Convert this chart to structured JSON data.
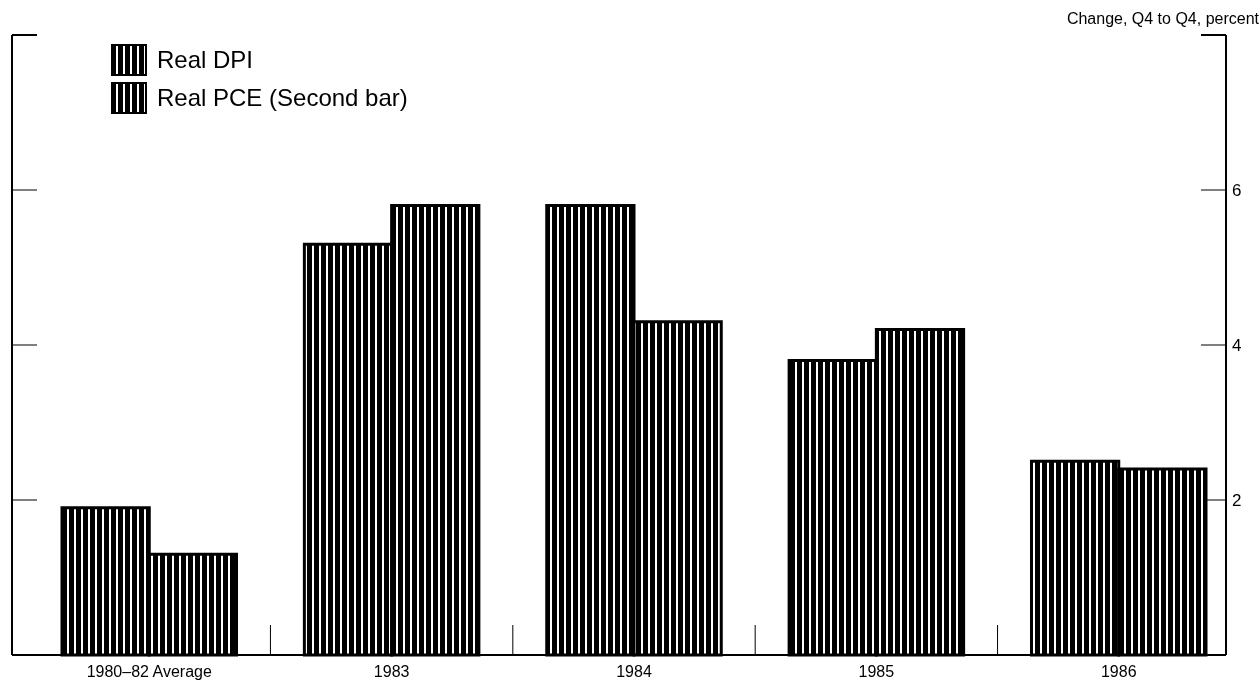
{
  "chart_data": {
    "type": "bar",
    "ylabel": "Change, Q4 to Q4, percent",
    "categories": [
      "1980–82 Average",
      "1983",
      "1984",
      "1985",
      "1986"
    ],
    "series": [
      {
        "name": "Real DPI",
        "color": "#000000",
        "values": [
          1.9,
          5.3,
          5.8,
          3.8,
          2.5
        ]
      },
      {
        "name": "Real PCE (Second bar)",
        "color": "#000000",
        "values": [
          1.3,
          5.8,
          4.3,
          4.2,
          2.4
        ]
      }
    ],
    "ylim": [
      0,
      8
    ],
    "yticks": [
      2,
      4,
      6
    ],
    "legend": "top left",
    "grid": false
  }
}
